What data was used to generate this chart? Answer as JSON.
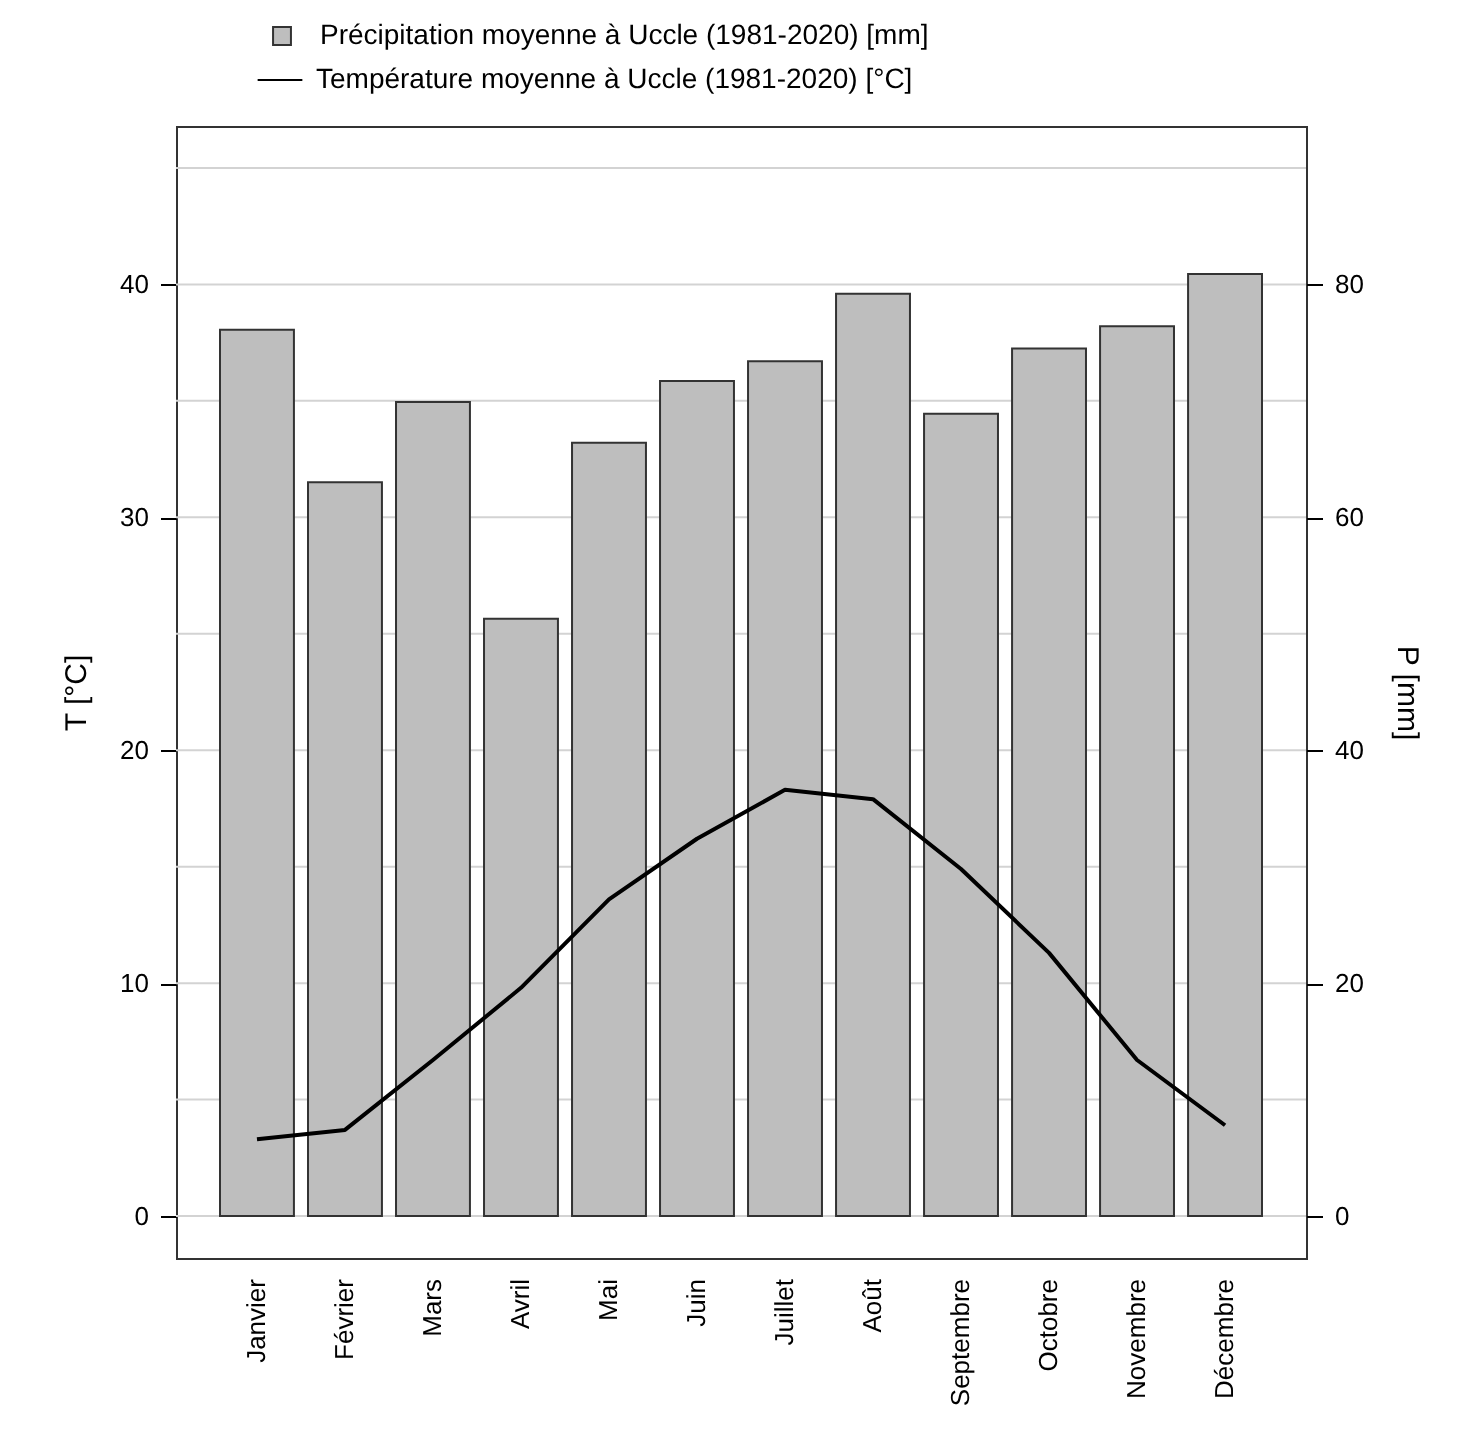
{
  "chart_data": {
    "type": "bar",
    "categories": [
      "Janvier",
      "Février",
      "Mars",
      "Avril",
      "Mai",
      "Juin",
      "Juillet",
      "Août",
      "Septembre",
      "Octobre",
      "Novembre",
      "Décembre"
    ],
    "series": [
      {
        "name": "Précipitation moyenne à Uccle (1981-2020) [mm]",
        "type": "bar",
        "axis": "y2",
        "color": "#bebebe",
        "values": [
          76.1,
          63.0,
          69.9,
          51.3,
          66.4,
          71.7,
          73.4,
          79.2,
          68.9,
          74.5,
          76.4,
          80.9
        ]
      },
      {
        "name": "Température moyenne à Uccle (1981-2020) [°C]",
        "type": "line",
        "color": "#000000",
        "values": [
          3.3,
          3.7,
          6.7,
          9.8,
          13.6,
          16.2,
          18.3,
          17.9,
          14.9,
          11.3,
          6.7,
          3.9
        ]
      }
    ],
    "ylabel": "T [°C]",
    "y2label": "P [mm]",
    "ylim": [
      -1.8,
      46.8
    ],
    "yticks": [
      0,
      10,
      20,
      30,
      40
    ],
    "y2lim": [
      -3.6,
      93.6
    ],
    "y2ticks": [
      0,
      20,
      40,
      60,
      80
    ],
    "grid": "y",
    "legend": "top left"
  }
}
